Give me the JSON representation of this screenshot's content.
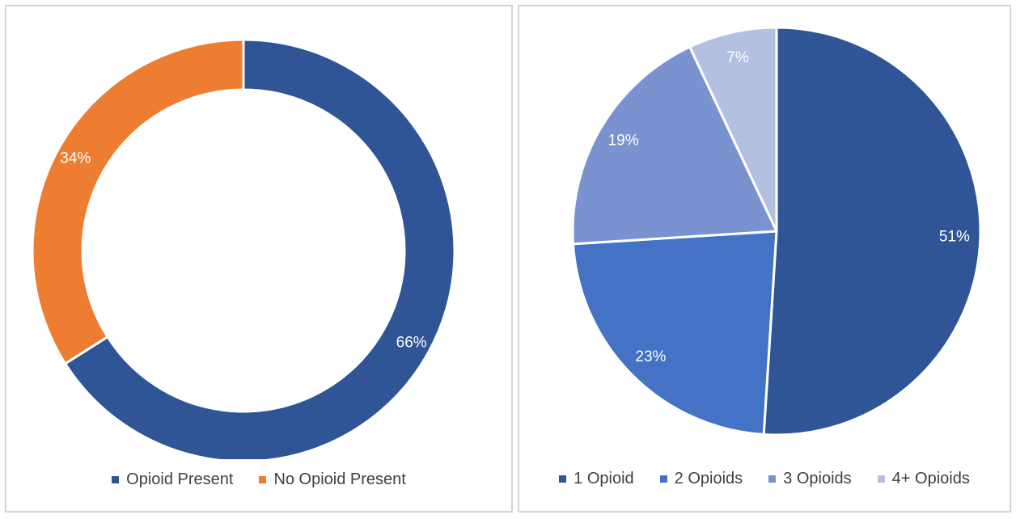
{
  "chart_data": [
    {
      "type": "pie",
      "variant": "donut",
      "title": "",
      "categories": [
        "Opioid Present",
        "No Opioid Present"
      ],
      "values": [
        66,
        34
      ],
      "labels": [
        "66%",
        "34%"
      ],
      "colors": [
        "#2f5597",
        "#ed7d31"
      ],
      "legend": "bottom",
      "start": "top",
      "direction": "clockwise"
    },
    {
      "type": "pie",
      "title": "",
      "categories": [
        "1 Opioid",
        "2 Opioids",
        "3 Opioids",
        "4+ Opioids"
      ],
      "values": [
        51,
        23,
        19,
        7
      ],
      "labels": [
        "51%",
        "23%",
        "19%",
        "7%"
      ],
      "colors": [
        "#2f5597",
        "#4472c4",
        "#7a93d0",
        "#b4c0e2"
      ],
      "legend": "bottom",
      "start": "top",
      "direction": "clockwise"
    }
  ]
}
